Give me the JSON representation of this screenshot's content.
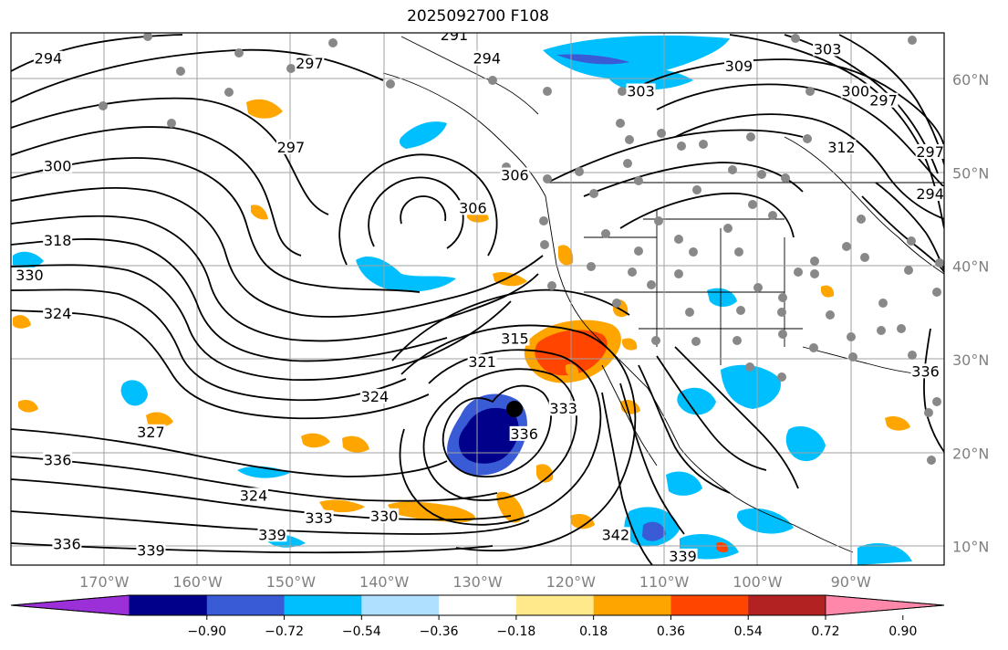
{
  "title": "2025092700 F108",
  "map": {
    "lon_range": [
      -180,
      -80
    ],
    "lat_range": [
      8,
      65
    ],
    "grid": true,
    "lon_ticks": [
      {
        "value": -170,
        "label": "170°W"
      },
      {
        "value": -160,
        "label": "160°W"
      },
      {
        "value": -150,
        "label": "150°W"
      },
      {
        "value": -140,
        "label": "140°W"
      },
      {
        "value": -130,
        "label": "130°W"
      },
      {
        "value": -120,
        "label": "120°W"
      },
      {
        "value": -110,
        "label": "110°W"
      },
      {
        "value": -100,
        "label": "100°W"
      },
      {
        "value": -90,
        "label": "90°W"
      }
    ],
    "lat_ticks": [
      {
        "value": 10,
        "label": "10°N"
      },
      {
        "value": 20,
        "label": "20°N"
      },
      {
        "value": 30,
        "label": "30°N"
      },
      {
        "value": 40,
        "label": "40°N"
      },
      {
        "value": 50,
        "label": "50°N"
      },
      {
        "value": 60,
        "label": "60°N"
      }
    ],
    "contour_labels": [
      {
        "text": "294",
        "lon": -176,
        "lat": 62
      },
      {
        "text": "291",
        "lon": -132.5,
        "lat": 64.5
      },
      {
        "text": "294",
        "lon": -129,
        "lat": 62
      },
      {
        "text": "297",
        "lon": -148,
        "lat": 61.5
      },
      {
        "text": "297",
        "lon": -150,
        "lat": 52.5
      },
      {
        "text": "300",
        "lon": -175,
        "lat": 50.5
      },
      {
        "text": "306",
        "lon": -130.5,
        "lat": 46
      },
      {
        "text": "306",
        "lon": -126,
        "lat": 49.5
      },
      {
        "text": "303",
        "lon": -112.5,
        "lat": 58.5
      },
      {
        "text": "309",
        "lon": -102,
        "lat": 61.2
      },
      {
        "text": "303",
        "lon": -92.5,
        "lat": 63
      },
      {
        "text": "300",
        "lon": -89.5,
        "lat": 58.5
      },
      {
        "text": "297",
        "lon": -86.5,
        "lat": 57.5
      },
      {
        "text": "312",
        "lon": -91,
        "lat": 52.5
      },
      {
        "text": "297",
        "lon": -81.5,
        "lat": 52
      },
      {
        "text": "294",
        "lon": -81.5,
        "lat": 47.5
      },
      {
        "text": "318",
        "lon": -175,
        "lat": 42.5
      },
      {
        "text": "330",
        "lon": -178,
        "lat": 38.8
      },
      {
        "text": "324",
        "lon": -175,
        "lat": 34.7
      },
      {
        "text": "321",
        "lon": -129.5,
        "lat": 29.5
      },
      {
        "text": "315",
        "lon": -126,
        "lat": 32
      },
      {
        "text": "324",
        "lon": -141,
        "lat": 25.8
      },
      {
        "text": "327",
        "lon": -165,
        "lat": 22
      },
      {
        "text": "336",
        "lon": -175,
        "lat": 19
      },
      {
        "text": "336",
        "lon": -125,
        "lat": 21.8
      },
      {
        "text": "333",
        "lon": -120.8,
        "lat": 24.5
      },
      {
        "text": "324",
        "lon": -154,
        "lat": 15.2
      },
      {
        "text": "333",
        "lon": -147,
        "lat": 12.8
      },
      {
        "text": "339",
        "lon": -152,
        "lat": 11
      },
      {
        "text": "330",
        "lon": -140,
        "lat": 13
      },
      {
        "text": "336",
        "lon": -174,
        "lat": 10
      },
      {
        "text": "339",
        "lon": -165,
        "lat": 9.3
      },
      {
        "text": "342",
        "lon": -115.2,
        "lat": 11
      },
      {
        "text": "339",
        "lon": -108,
        "lat": 8.7
      },
      {
        "text": "336",
        "lon": -82,
        "lat": 28.5
      }
    ]
  },
  "legend": {
    "colors": [
      "#9b30d9",
      "#00008b",
      "#3a5bd6",
      "#00bfff",
      "#b0e0ff",
      "#ffffff",
      "#ffe98a",
      "#ffa500",
      "#ff4500",
      "#b22222",
      "#ff88aa"
    ],
    "tick_labels": [
      "−0.90",
      "−0.72",
      "−0.54",
      "−0.36",
      "−0.18",
      "0.18",
      "0.36",
      "0.54",
      "0.72",
      "0.90"
    ],
    "extend": "both"
  }
}
